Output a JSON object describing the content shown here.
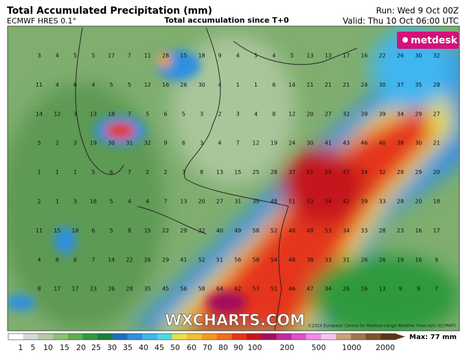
{
  "header": {
    "title": "Total Accumulated Precipitation (mm)",
    "model": "ECMWF HRES 0.1°",
    "subtitle": "Total accumulation since T+0",
    "run": "Run: Wed 9 Oct 00Z",
    "valid": "Valid: Thu 10 Oct 06:00 UTC"
  },
  "logo": "metdesk",
  "watermark": "WXCHARTS.COM",
  "copyright": "©2024 European Centre for Medium-range Weather Forecasts (ECMWF)",
  "grid_values": [
    [
      3,
      4,
      5,
      5,
      17,
      7,
      11,
      28,
      15,
      18,
      9,
      4,
      5,
      4,
      5,
      13,
      13,
      17,
      16,
      22,
      26,
      30,
      32
    ],
    [
      11,
      4,
      6,
      4,
      5,
      5,
      12,
      16,
      26,
      30,
      4,
      1,
      1,
      6,
      14,
      11,
      21,
      21,
      24,
      30,
      37,
      35,
      28
    ],
    [
      14,
      12,
      3,
      13,
      18,
      7,
      5,
      6,
      5,
      3,
      2,
      3,
      4,
      8,
      12,
      20,
      27,
      32,
      39,
      39,
      34,
      29,
      27
    ],
    [
      5,
      2,
      3,
      19,
      30,
      31,
      32,
      9,
      6,
      3,
      4,
      7,
      12,
      19,
      24,
      30,
      41,
      43,
      46,
      40,
      38,
      30,
      21
    ],
    [
      1,
      1,
      1,
      5,
      6,
      7,
      2,
      2,
      3,
      8,
      13,
      15,
      25,
      28,
      37,
      51,
      55,
      47,
      34,
      32,
      28,
      29,
      20
    ],
    [
      2,
      1,
      3,
      16,
      5,
      4,
      4,
      7,
      13,
      20,
      27,
      31,
      39,
      48,
      51,
      53,
      54,
      42,
      39,
      33,
      28,
      20,
      18
    ],
    [
      11,
      15,
      18,
      6,
      5,
      8,
      15,
      22,
      29,
      32,
      40,
      49,
      58,
      52,
      48,
      48,
      53,
      34,
      33,
      28,
      23,
      16,
      17
    ],
    [
      4,
      8,
      6,
      7,
      14,
      22,
      26,
      29,
      41,
      52,
      51,
      56,
      58,
      54,
      48,
      38,
      33,
      31,
      26,
      26,
      19,
      16,
      9
    ],
    [
      8,
      17,
      17,
      23,
      26,
      28,
      35,
      45,
      56,
      58,
      64,
      62,
      53,
      51,
      46,
      47,
      34,
      26,
      16,
      13,
      9,
      9,
      7
    ]
  ],
  "colorbar": {
    "labels": [
      1,
      5,
      10,
      15,
      20,
      25,
      30,
      35,
      40,
      45,
      50,
      60,
      70,
      80,
      90,
      100,
      200,
      500,
      1000,
      2000
    ],
    "colors": [
      "#ffffff",
      "#d9d9d9",
      "#b6c9a6",
      "#8fbf77",
      "#5fae52",
      "#2f9a3e",
      "#1c7f3c",
      "#1f6fbf",
      "#2f8fe0",
      "#3fb6ef",
      "#4fd8e0",
      "#e8e04a",
      "#f5c02c",
      "#f29a21",
      "#ef6f1c",
      "#e5361a",
      "#c4161c",
      "#a0105e",
      "#c02a9c",
      "#e04fd0",
      "#f08ae8",
      "#f7c6f0",
      "#c9a27a",
      "#a0774a",
      "#7a522c",
      "#5b3718"
    ],
    "max": "Max: 77 mm"
  }
}
